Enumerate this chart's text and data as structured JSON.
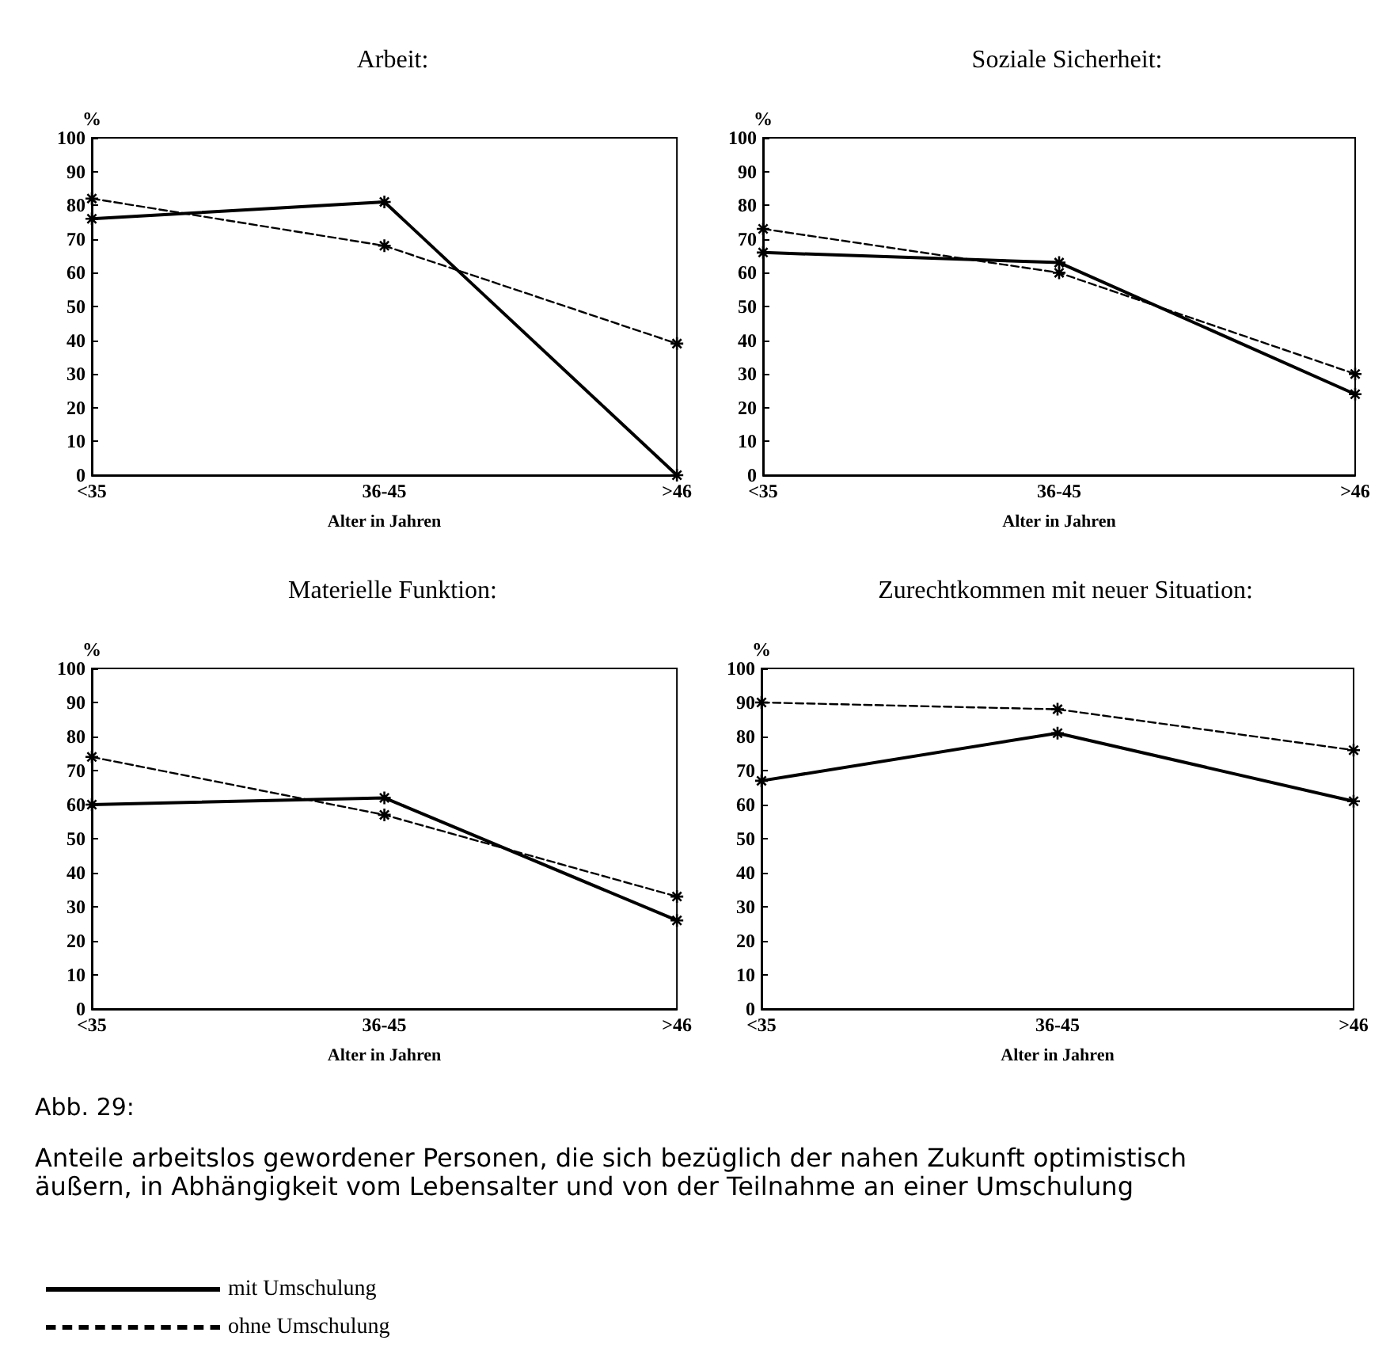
{
  "chart_data": [
    {
      "type": "line",
      "title": "Arbeit:",
      "xlabel": "Alter in Jahren",
      "ylabel": "%",
      "categories": [
        "<35",
        "36-45",
        ">46"
      ],
      "ylim": [
        0,
        100
      ],
      "yticks": [
        0,
        10,
        20,
        30,
        40,
        50,
        60,
        70,
        80,
        90,
        100
      ],
      "series": [
        {
          "color": "#000000",
          "values": [
            76,
            81,
            0
          ],
          "line_style": "solid",
          "marker": "cross"
        },
        {
          "color": "#000000",
          "values": [
            82,
            68,
            39
          ],
          "line_style": "dashed",
          "marker": "cross"
        }
      ]
    },
    {
      "type": "line",
      "title": "Soziale Sicherheit:",
      "xlabel": "Alter in Jahren",
      "ylabel": "%",
      "categories": [
        "<35",
        "36-45",
        ">46"
      ],
      "ylim": [
        0,
        100
      ],
      "yticks": [
        0,
        10,
        20,
        30,
        40,
        50,
        60,
        70,
        80,
        90,
        100
      ],
      "series": [
        {
          "color": "#000000",
          "values": [
            66,
            63,
            24
          ],
          "line_style": "solid",
          "marker": "cross"
        },
        {
          "color": "#000000",
          "values": [
            73,
            60,
            30
          ],
          "line_style": "dashed",
          "marker": "cross"
        }
      ]
    },
    {
      "type": "line",
      "title": "Materielle Funktion:",
      "xlabel": "Alter in Jahren",
      "ylabel": "%",
      "categories": [
        "<35",
        "36-45",
        ">46"
      ],
      "ylim": [
        0,
        100
      ],
      "yticks": [
        0,
        10,
        20,
        30,
        40,
        50,
        60,
        70,
        80,
        90,
        100
      ],
      "series": [
        {
          "color": "#000000",
          "values": [
            60,
            62,
            26
          ],
          "line_style": "solid",
          "marker": "cross"
        },
        {
          "color": "#000000",
          "values": [
            74,
            57,
            33
          ],
          "line_style": "dashed",
          "marker": "cross"
        }
      ]
    },
    {
      "type": "line",
      "title": "Zurechtkommen mit neuer Situation:",
      "xlabel": "Alter in Jahren",
      "ylabel": "%",
      "categories": [
        "<35",
        "36-45",
        ">46"
      ],
      "ylim": [
        0,
        100
      ],
      "yticks": [
        0,
        10,
        20,
        30,
        40,
        50,
        60,
        70,
        80,
        90,
        100
      ],
      "legend": "bottom left",
      "annotations": [
        "Abb. 29:",
        "Anteile arbeitslos gewordener Personen, die sich bezüglich der nahen Zukunft optimistisch äußern, in Abhängigkeit vom Lebensalter und von der Teilnahme an einer Umschulung"
      ],
      "series": [
        {
          "name": "mit Umschulung",
          "color": "#000000",
          "values": [
            67,
            81,
            61
          ],
          "line_style": "solid",
          "marker": "cross"
        },
        {
          "name": "ohne Umschulung",
          "color": "#000000",
          "values": [
            90,
            88,
            76
          ],
          "line_style": "dashed",
          "marker": "cross"
        }
      ]
    }
  ]
}
